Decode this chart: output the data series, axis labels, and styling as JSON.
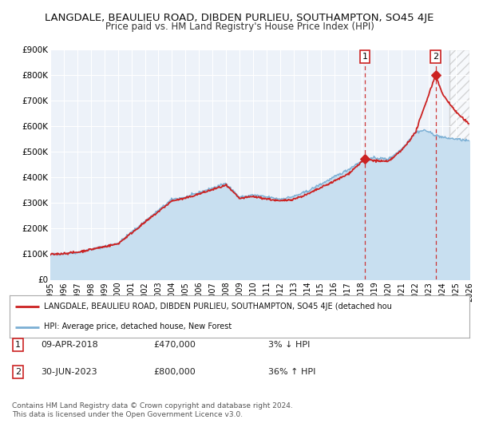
{
  "title": "LANGDALE, BEAULIEU ROAD, DIBDEN PURLIEU, SOUTHAMPTON, SO45 4JE",
  "subtitle": "Price paid vs. HM Land Registry's House Price Index (HPI)",
  "title_fontsize": 9.5,
  "subtitle_fontsize": 8.5,
  "xlim": [
    1995,
    2026
  ],
  "ylim": [
    0,
    900000
  ],
  "yticks": [
    0,
    100000,
    200000,
    300000,
    400000,
    500000,
    600000,
    700000,
    800000,
    900000
  ],
  "ytick_labels": [
    "£0",
    "£100K",
    "£200K",
    "£300K",
    "£400K",
    "£500K",
    "£600K",
    "£700K",
    "£800K",
    "£900K"
  ],
  "xticks": [
    1995,
    1996,
    1997,
    1998,
    1999,
    2000,
    2001,
    2002,
    2003,
    2004,
    2005,
    2006,
    2007,
    2008,
    2009,
    2010,
    2011,
    2012,
    2013,
    2014,
    2015,
    2016,
    2017,
    2018,
    2019,
    2020,
    2021,
    2022,
    2023,
    2024,
    2025,
    2026
  ],
  "hpi_color": "#7bafd4",
  "hpi_fill_color": "#c8dff0",
  "price_color": "#cc2222",
  "dot_color": "#cc2222",
  "sale1_x": 2018.27,
  "sale1_y": 470000,
  "sale2_x": 2023.5,
  "sale2_y": 800000,
  "vline1_x": 2018.27,
  "vline2_x": 2023.5,
  "hatch_start_x": 2024.5,
  "legend_label_price": "LANGDALE, BEAULIEU ROAD, DIBDEN PURLIEU, SOUTHAMPTON, SO45 4JE (detached hou",
  "legend_label_hpi": "HPI: Average price, detached house, New Forest",
  "footer1": "Contains HM Land Registry data © Crown copyright and database right 2024.",
  "footer2": "This data is licensed under the Open Government Licence v3.0.",
  "bg_color": "#ffffff",
  "plot_bg_color": "#edf2f9",
  "grid_color": "#ffffff"
}
